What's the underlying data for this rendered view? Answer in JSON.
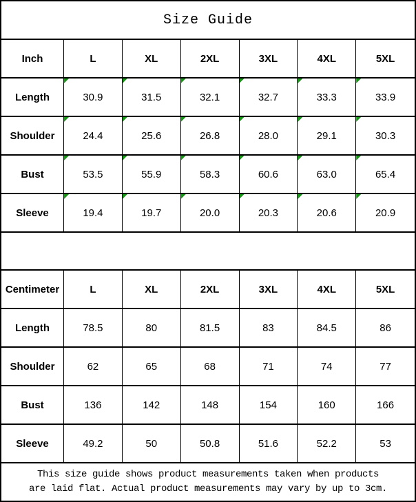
{
  "title": "Size Guide",
  "colors": {
    "border": "#000000",
    "background": "#ffffff",
    "text": "#000000",
    "corner_flag_green": "#169a16"
  },
  "tables": [
    {
      "name": "inch",
      "unit_header": "Inch",
      "sizes": [
        "L",
        "XL",
        "2XL",
        "3XL",
        "4XL",
        "5XL"
      ],
      "rows": [
        {
          "label": "Length",
          "values": [
            "30.9",
            "31.5",
            "32.1",
            "32.7",
            "33.3",
            "33.9"
          ]
        },
        {
          "label": "Shoulder",
          "values": [
            "24.4",
            "25.6",
            "26.8",
            "28.0",
            "29.1",
            "30.3"
          ]
        },
        {
          "label": "Bust",
          "values": [
            "53.5",
            "55.9",
            "58.3",
            "60.6",
            "63.0",
            "65.4"
          ]
        },
        {
          "label": "Sleeve",
          "values": [
            "19.4",
            "19.7",
            "20.0",
            "20.3",
            "20.6",
            "20.9"
          ]
        }
      ],
      "cell_corner_flags": true
    },
    {
      "name": "centimeter",
      "unit_header": "Centimeter",
      "sizes": [
        "L",
        "XL",
        "2XL",
        "3XL",
        "4XL",
        "5XL"
      ],
      "rows": [
        {
          "label": "Length",
          "values": [
            "78.5",
            "80",
            "81.5",
            "83",
            "84.5",
            "86"
          ]
        },
        {
          "label": "Shoulder",
          "values": [
            "62",
            "65",
            "68",
            "71",
            "74",
            "77"
          ]
        },
        {
          "label": "Bust",
          "values": [
            "136",
            "142",
            "148",
            "154",
            "160",
            "166"
          ]
        },
        {
          "label": "Sleeve",
          "values": [
            "49.2",
            "50",
            "50.8",
            "51.6",
            "52.2",
            "53"
          ]
        }
      ],
      "cell_corner_flags": false
    }
  ],
  "footer": {
    "lines": [
      "This size guide shows product measurements taken when products",
      "are laid flat. Actual product measurements may vary by up to 3cm."
    ]
  }
}
